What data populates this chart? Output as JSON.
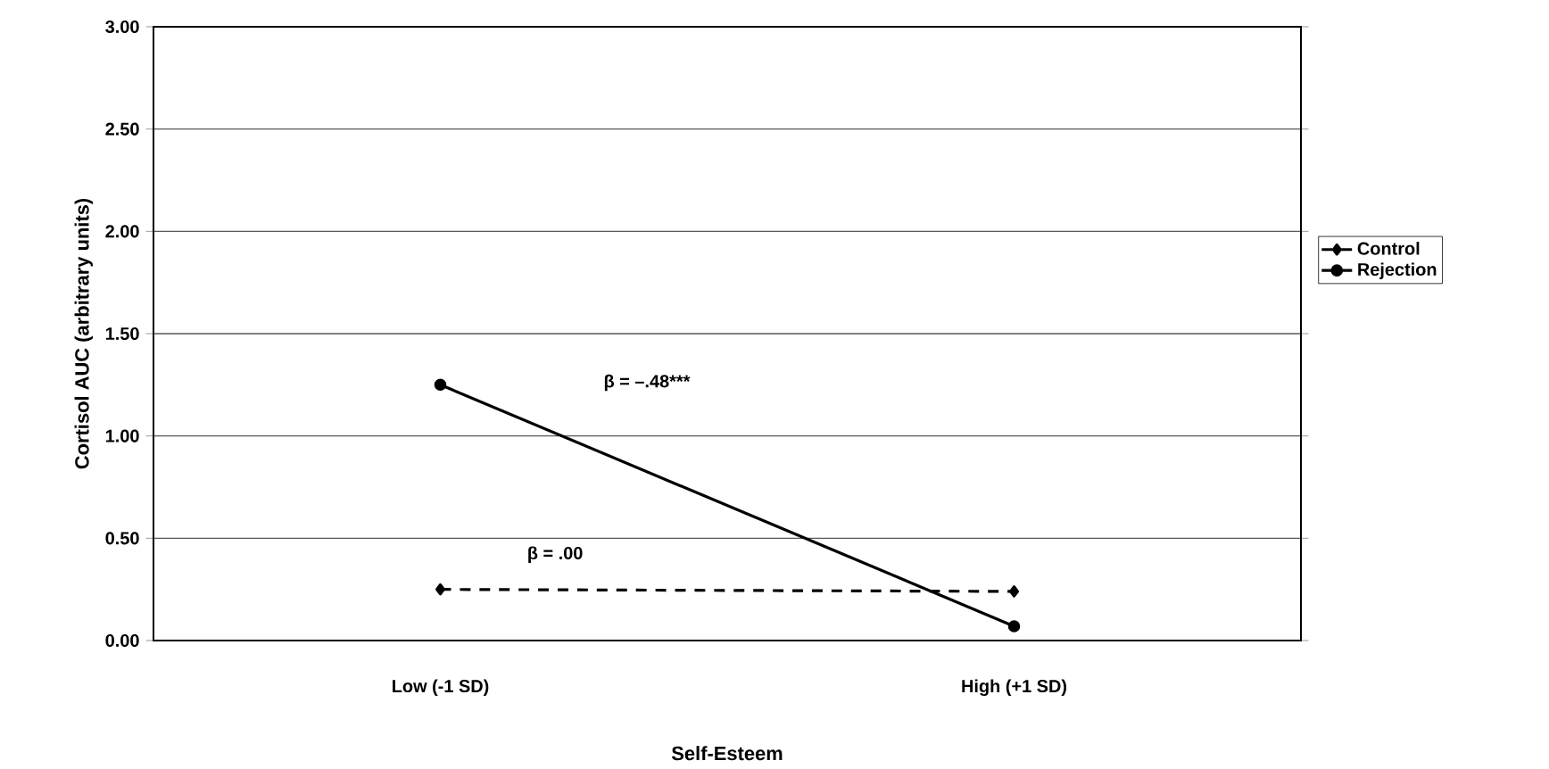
{
  "chart_data": {
    "type": "line",
    "xlabel": "Self-Esteem",
    "ylabel": "Cortisol AUC (arbitrary units)",
    "categories": [
      "Low (-1 SD)",
      "High (+1 SD)"
    ],
    "series": [
      {
        "name": "Control",
        "color": "#000000",
        "values": [
          0.25,
          0.24
        ],
        "marker": "diamond",
        "line_style": "dashed"
      },
      {
        "name": "Rejection",
        "color": "#000000",
        "values": [
          1.25,
          0.07
        ],
        "marker": "circle",
        "line_style": "solid"
      }
    ],
    "ylim": [
      0,
      3
    ],
    "yticks": [
      {
        "value": 0,
        "label": "0.00"
      },
      {
        "value": 0.5,
        "label": "0.50"
      },
      {
        "value": 1,
        "label": "1.00"
      },
      {
        "value": 1.5,
        "label": "1.50"
      },
      {
        "value": 2,
        "label": "2.00"
      },
      {
        "value": 2.5,
        "label": "2.50"
      },
      {
        "value": 3,
        "label": "3.00"
      }
    ],
    "grid": "y",
    "legend": "right",
    "annotations": [
      "β = .00",
      "β = –.48***"
    ]
  }
}
